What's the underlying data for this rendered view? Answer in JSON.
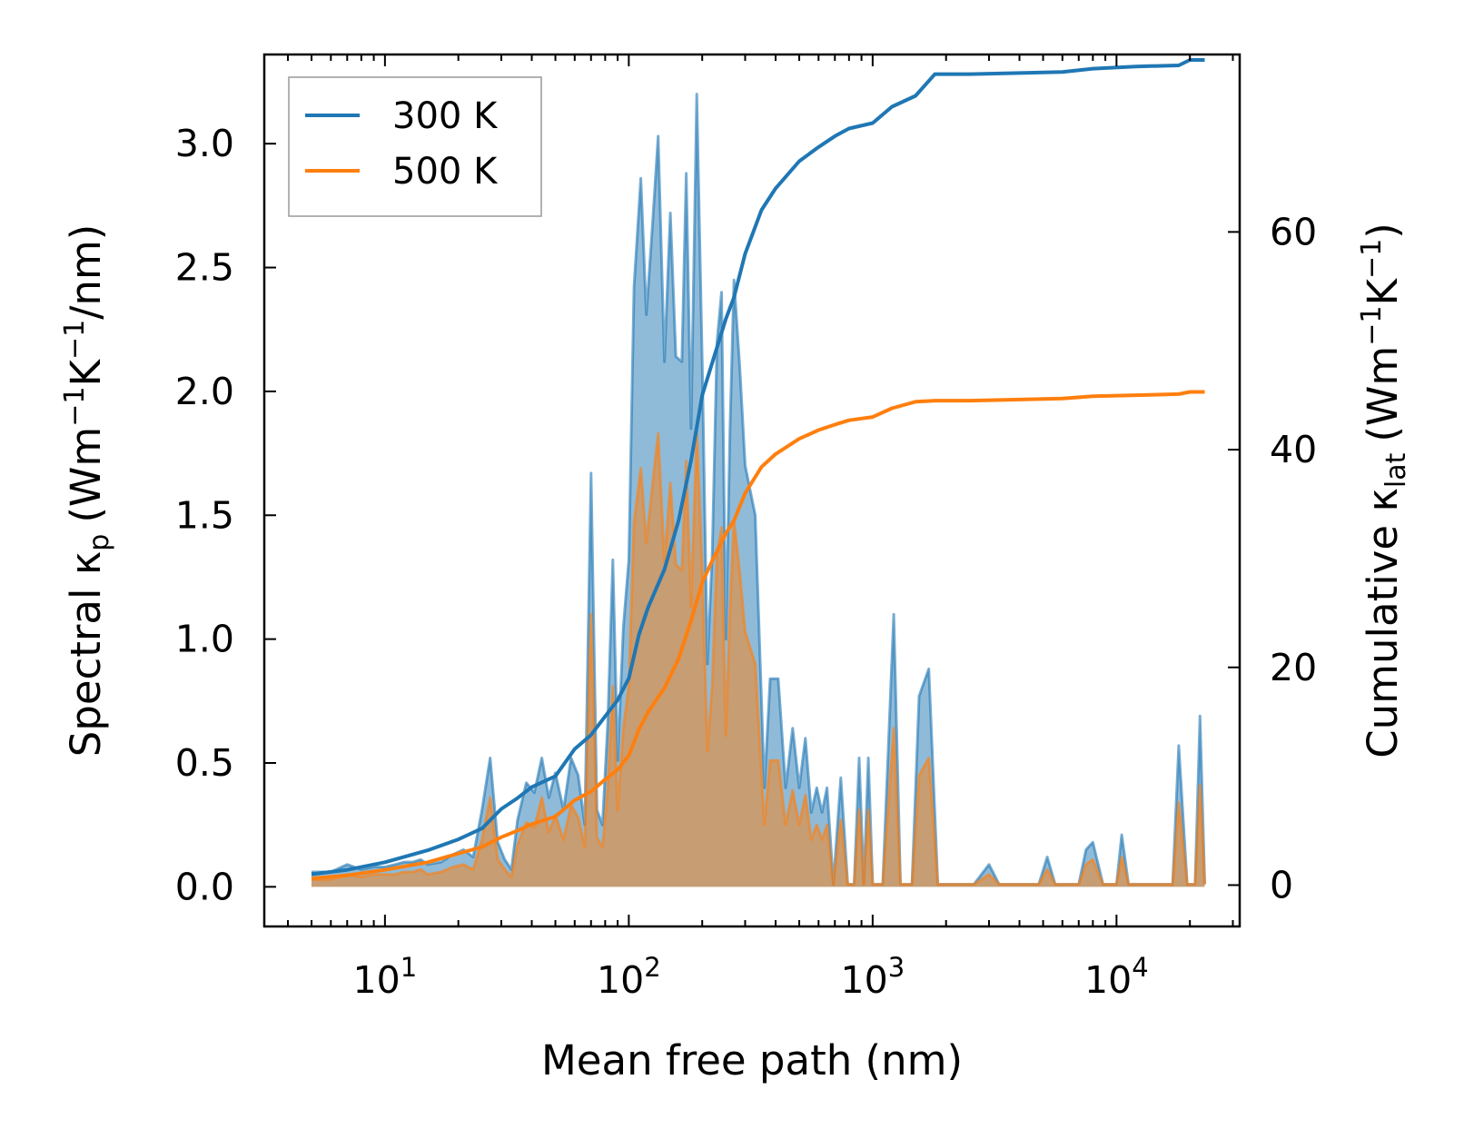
{
  "chart_data": {
    "type": "line",
    "xscale": "log",
    "xlabel": "Mean free path (nm)",
    "ylabel_left": {
      "main": "Spectral κ",
      "sub": "p",
      "unit": "(Wm−1K−1/nm)"
    },
    "ylabel_right": {
      "main": "Cumulative κ",
      "sub": "lat",
      "unit": "(Wm−1K−1)"
    },
    "ylabel_left_text": "Spectral κp (Wm⁻¹K⁻¹/nm)",
    "ylabel_right_text": "Cumulative κlat (Wm⁻¹K⁻¹)",
    "xlim": [
      3.2,
      32000
    ],
    "ylim_left": [
      -0.16,
      3.36
    ],
    "ylim_right": [
      -3.8,
      76.3
    ],
    "x_ticks": [
      {
        "value": 10,
        "base": "10",
        "exp": "1"
      },
      {
        "value": 100,
        "base": "10",
        "exp": "2"
      },
      {
        "value": 1000,
        "base": "10",
        "exp": "3"
      },
      {
        "value": 10000,
        "base": "10",
        "exp": "4"
      }
    ],
    "y_left_ticks": [
      {
        "value": 0.0,
        "label": "0.0"
      },
      {
        "value": 0.5,
        "label": "0.5"
      },
      {
        "value": 1.0,
        "label": "1.0"
      },
      {
        "value": 1.5,
        "label": "1.5"
      },
      {
        "value": 2.0,
        "label": "2.0"
      },
      {
        "value": 2.5,
        "label": "2.5"
      },
      {
        "value": 3.0,
        "label": "3.0"
      }
    ],
    "y_right_ticks": [
      {
        "value": 0,
        "label": "0"
      },
      {
        "value": 20,
        "label": "20"
      },
      {
        "value": 40,
        "label": "40"
      },
      {
        "value": 60,
        "label": "60"
      }
    ],
    "legend": {
      "position": "top-left",
      "entries": [
        {
          "name": "300 K",
          "color": "#1f77b4"
        },
        {
          "name": "500 K",
          "color": "#ff7f0e"
        }
      ]
    },
    "series": [
      {
        "name": "300 K",
        "color": "#1f77b4",
        "spectral": [
          [
            5,
            0.06
          ],
          [
            6,
            0.06
          ],
          [
            7,
            0.09
          ],
          [
            8,
            0.07
          ],
          [
            9,
            0.08
          ],
          [
            10,
            0.08
          ],
          [
            11,
            0.09
          ],
          [
            12,
            0.1
          ],
          [
            13,
            0.1
          ],
          [
            14,
            0.11
          ],
          [
            15,
            0.09
          ],
          [
            17,
            0.1
          ],
          [
            19,
            0.13
          ],
          [
            21,
            0.15
          ],
          [
            23,
            0.12
          ],
          [
            25,
            0.31
          ],
          [
            27,
            0.52
          ],
          [
            29,
            0.18
          ],
          [
            31,
            0.11
          ],
          [
            33,
            0.07
          ],
          [
            35,
            0.27
          ],
          [
            38,
            0.42
          ],
          [
            41,
            0.38
          ],
          [
            44,
            0.52
          ],
          [
            47,
            0.36
          ],
          [
            50,
            0.46
          ],
          [
            54,
            0.31
          ],
          [
            58,
            0.52
          ],
          [
            62,
            0.45
          ],
          [
            66,
            0.25
          ],
          [
            70,
            1.67
          ],
          [
            74,
            0.31
          ],
          [
            78,
            0.25
          ],
          [
            82,
            0.66
          ],
          [
            86,
            1.32
          ],
          [
            90,
            0.51
          ],
          [
            95,
            1.05
          ],
          [
            100,
            1.32
          ],
          [
            105,
            2.42
          ],
          [
            112,
            2.86
          ],
          [
            118,
            2.31
          ],
          [
            125,
            2.67
          ],
          [
            132,
            3.03
          ],
          [
            140,
            2.12
          ],
          [
            148,
            2.72
          ],
          [
            156,
            2.14
          ],
          [
            165,
            2.12
          ],
          [
            172,
            2.88
          ],
          [
            180,
            1.85
          ],
          [
            190,
            3.2
          ],
          [
            200,
            2.12
          ],
          [
            210,
            0.9
          ],
          [
            220,
            1.35
          ],
          [
            230,
            2.2
          ],
          [
            240,
            2.4
          ],
          [
            250,
            1.0
          ],
          [
            260,
            1.85
          ],
          [
            270,
            2.45
          ],
          [
            285,
            2.1
          ],
          [
            300,
            1.7
          ],
          [
            330,
            1.5
          ],
          [
            360,
            0.4
          ],
          [
            380,
            0.84
          ],
          [
            410,
            0.84
          ],
          [
            440,
            0.4
          ],
          [
            470,
            0.64
          ],
          [
            500,
            0.4
          ],
          [
            530,
            0.6
          ],
          [
            560,
            0.3
          ],
          [
            590,
            0.4
          ],
          [
            620,
            0.3
          ],
          [
            650,
            0.4
          ],
          [
            690,
            0.01
          ],
          [
            740,
            0.44
          ],
          [
            790,
            0.01
          ],
          [
            840,
            0.01
          ],
          [
            880,
            0.52
          ],
          [
            920,
            0.01
          ],
          [
            960,
            0.52
          ],
          [
            1000,
            0.01
          ],
          [
            1050,
            0.01
          ],
          [
            1100,
            0.01
          ],
          [
            1220,
            1.1
          ],
          [
            1300,
            0.01
          ],
          [
            1450,
            0.01
          ],
          [
            1550,
            0.77
          ],
          [
            1700,
            0.88
          ],
          [
            1850,
            0.01
          ],
          [
            2000,
            0.01
          ],
          [
            2600,
            0.01
          ],
          [
            3000,
            0.09
          ],
          [
            3300,
            0.01
          ],
          [
            4800,
            0.01
          ],
          [
            5200,
            0.12
          ],
          [
            5600,
            0.01
          ],
          [
            7000,
            0.01
          ],
          [
            7500,
            0.15
          ],
          [
            8000,
            0.18
          ],
          [
            8800,
            0.01
          ],
          [
            10000,
            0.01
          ],
          [
            10500,
            0.21
          ],
          [
            11200,
            0.01
          ],
          [
            17000,
            0.01
          ],
          [
            18000,
            0.57
          ],
          [
            19500,
            0.01
          ],
          [
            21000,
            0.01
          ],
          [
            22000,
            0.69
          ],
          [
            23000,
            0.01
          ]
        ],
        "cumulative": [
          [
            5,
            1.0
          ],
          [
            7,
            1.4
          ],
          [
            10,
            2.1
          ],
          [
            15,
            3.2
          ],
          [
            20,
            4.2
          ],
          [
            25,
            5.2
          ],
          [
            30,
            7.0
          ],
          [
            35,
            8.0
          ],
          [
            40,
            9.0
          ],
          [
            50,
            10.0
          ],
          [
            60,
            12.5
          ],
          [
            70,
            13.8
          ],
          [
            80,
            15.5
          ],
          [
            90,
            17.0
          ],
          [
            100,
            19.0
          ],
          [
            110,
            23.0
          ],
          [
            120,
            25.5
          ],
          [
            140,
            29.0
          ],
          [
            160,
            33.5
          ],
          [
            180,
            39.0
          ],
          [
            200,
            45.0
          ],
          [
            220,
            48.0
          ],
          [
            250,
            52.0
          ],
          [
            270,
            54.0
          ],
          [
            300,
            58.0
          ],
          [
            350,
            62.0
          ],
          [
            400,
            64.0
          ],
          [
            500,
            66.5
          ],
          [
            600,
            67.8
          ],
          [
            700,
            68.8
          ],
          [
            800,
            69.5
          ],
          [
            1000,
            70.0
          ],
          [
            1200,
            71.5
          ],
          [
            1500,
            72.5
          ],
          [
            1800,
            74.5
          ],
          [
            2500,
            74.5
          ],
          [
            4000,
            74.6
          ],
          [
            6000,
            74.7
          ],
          [
            8000,
            75.0
          ],
          [
            12000,
            75.2
          ],
          [
            18000,
            75.3
          ],
          [
            20000,
            75.8
          ],
          [
            23000,
            75.8
          ]
        ]
      },
      {
        "name": "500 K",
        "color": "#ff7f0e",
        "spectral": [
          [
            5,
            0.03
          ],
          [
            6,
            0.03
          ],
          [
            7,
            0.05
          ],
          [
            8,
            0.04
          ],
          [
            9,
            0.05
          ],
          [
            10,
            0.05
          ],
          [
            11,
            0.05
          ],
          [
            12,
            0.06
          ],
          [
            13,
            0.06
          ],
          [
            14,
            0.07
          ],
          [
            15,
            0.05
          ],
          [
            17,
            0.06
          ],
          [
            19,
            0.08
          ],
          [
            21,
            0.09
          ],
          [
            23,
            0.07
          ],
          [
            25,
            0.19
          ],
          [
            27,
            0.36
          ],
          [
            29,
            0.11
          ],
          [
            31,
            0.07
          ],
          [
            33,
            0.04
          ],
          [
            35,
            0.17
          ],
          [
            38,
            0.26
          ],
          [
            41,
            0.24
          ],
          [
            44,
            0.36
          ],
          [
            47,
            0.22
          ],
          [
            50,
            0.29
          ],
          [
            54,
            0.19
          ],
          [
            58,
            0.33
          ],
          [
            62,
            0.28
          ],
          [
            66,
            0.16
          ],
          [
            70,
            1.1
          ],
          [
            74,
            0.2
          ],
          [
            78,
            0.16
          ],
          [
            82,
            0.4
          ],
          [
            86,
            0.81
          ],
          [
            90,
            0.31
          ],
          [
            95,
            0.64
          ],
          [
            100,
            0.81
          ],
          [
            105,
            1.47
          ],
          [
            112,
            1.69
          ],
          [
            118,
            1.39
          ],
          [
            125,
            1.62
          ],
          [
            132,
            1.83
          ],
          [
            140,
            1.31
          ],
          [
            148,
            1.63
          ],
          [
            156,
            1.3
          ],
          [
            165,
            1.28
          ],
          [
            172,
            1.72
          ],
          [
            180,
            1.13
          ],
          [
            190,
            1.84
          ],
          [
            200,
            1.28
          ],
          [
            210,
            0.55
          ],
          [
            220,
            0.82
          ],
          [
            230,
            1.34
          ],
          [
            240,
            1.45
          ],
          [
            250,
            0.61
          ],
          [
            260,
            1.12
          ],
          [
            270,
            1.48
          ],
          [
            285,
            1.27
          ],
          [
            300,
            1.03
          ],
          [
            330,
            0.9
          ],
          [
            360,
            0.25
          ],
          [
            380,
            0.51
          ],
          [
            410,
            0.51
          ],
          [
            440,
            0.25
          ],
          [
            470,
            0.39
          ],
          [
            500,
            0.25
          ],
          [
            530,
            0.37
          ],
          [
            560,
            0.19
          ],
          [
            590,
            0.25
          ],
          [
            620,
            0.19
          ],
          [
            650,
            0.25
          ],
          [
            690,
            0.01
          ],
          [
            740,
            0.27
          ],
          [
            790,
            0.01
          ],
          [
            840,
            0.01
          ],
          [
            880,
            0.31
          ],
          [
            920,
            0.01
          ],
          [
            960,
            0.31
          ],
          [
            1000,
            0.01
          ],
          [
            1050,
            0.01
          ],
          [
            1100,
            0.01
          ],
          [
            1220,
            0.64
          ],
          [
            1300,
            0.01
          ],
          [
            1450,
            0.01
          ],
          [
            1550,
            0.45
          ],
          [
            1700,
            0.52
          ],
          [
            1850,
            0.01
          ],
          [
            2000,
            0.01
          ],
          [
            2600,
            0.01
          ],
          [
            3000,
            0.05
          ],
          [
            3300,
            0.01
          ],
          [
            4800,
            0.01
          ],
          [
            5200,
            0.07
          ],
          [
            5600,
            0.01
          ],
          [
            7000,
            0.01
          ],
          [
            7500,
            0.09
          ],
          [
            8000,
            0.11
          ],
          [
            8800,
            0.01
          ],
          [
            10000,
            0.01
          ],
          [
            10500,
            0.12
          ],
          [
            11200,
            0.01
          ],
          [
            17000,
            0.01
          ],
          [
            18000,
            0.34
          ],
          [
            19500,
            0.01
          ],
          [
            21000,
            0.01
          ],
          [
            22000,
            0.41
          ],
          [
            23000,
            0.01
          ]
        ],
        "cumulative": [
          [
            5,
            0.6
          ],
          [
            7,
            0.9
          ],
          [
            10,
            1.4
          ],
          [
            15,
            2.1
          ],
          [
            20,
            2.9
          ],
          [
            25,
            3.5
          ],
          [
            30,
            4.4
          ],
          [
            35,
            5.0
          ],
          [
            40,
            5.6
          ],
          [
            50,
            6.3
          ],
          [
            60,
            7.8
          ],
          [
            70,
            8.6
          ],
          [
            80,
            9.7
          ],
          [
            90,
            10.6
          ],
          [
            100,
            11.9
          ],
          [
            110,
            14.3
          ],
          [
            120,
            15.9
          ],
          [
            140,
            18.1
          ],
          [
            160,
            20.8
          ],
          [
            180,
            24.3
          ],
          [
            200,
            27.8
          ],
          [
            220,
            29.8
          ],
          [
            250,
            32.3
          ],
          [
            270,
            33.5
          ],
          [
            300,
            36.0
          ],
          [
            350,
            38.4
          ],
          [
            400,
            39.6
          ],
          [
            500,
            41.0
          ],
          [
            600,
            41.8
          ],
          [
            700,
            42.3
          ],
          [
            800,
            42.7
          ],
          [
            1000,
            43.0
          ],
          [
            1200,
            43.8
          ],
          [
            1500,
            44.4
          ],
          [
            1800,
            44.5
          ],
          [
            2500,
            44.5
          ],
          [
            4000,
            44.6
          ],
          [
            6000,
            44.7
          ],
          [
            8000,
            44.9
          ],
          [
            12000,
            45.0
          ],
          [
            18000,
            45.1
          ],
          [
            20000,
            45.3
          ],
          [
            23000,
            45.3
          ]
        ]
      }
    ]
  }
}
